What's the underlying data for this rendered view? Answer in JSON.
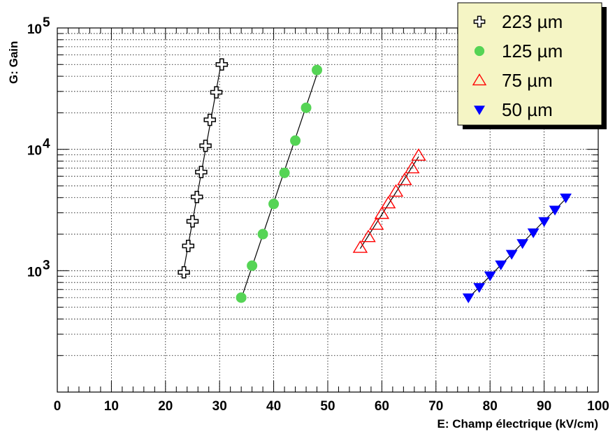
{
  "chart_data": {
    "type": "scatter",
    "xlabel": "E: Champ électrique (kV/cm)",
    "ylabel": "G: Gain",
    "xlim": [
      0,
      100
    ],
    "ylim": [
      100,
      100000
    ],
    "y_scale": "log",
    "grid": true,
    "legend_position": "top-right",
    "x_ticks": [
      "0",
      "10",
      "20",
      "30",
      "40",
      "50",
      "60",
      "70",
      "80",
      "90",
      "100"
    ],
    "y_ticks": [
      {
        "base": "10",
        "exp": "3",
        "value": 1000
      },
      {
        "base": "10",
        "exp": "4",
        "value": 10000
      },
      {
        "base": "10",
        "exp": "5",
        "value": 100000
      }
    ],
    "series": [
      {
        "name": "223 µm",
        "marker": "open-cross",
        "color": "#000000",
        "x": [
          23.4,
          24.2,
          25.0,
          25.8,
          26.6,
          27.4,
          28.2,
          29.4,
          30.4
        ],
        "y": [
          970,
          1600,
          2550,
          4050,
          6500,
          10700,
          17500,
          29500,
          50000
        ]
      },
      {
        "name": "125 µm",
        "marker": "filled-circle",
        "color": "#55d455",
        "x": [
          34,
          36,
          38,
          40,
          42,
          44,
          46,
          48
        ],
        "y": [
          600,
          1100,
          2000,
          3550,
          6400,
          11800,
          22000,
          45000
        ]
      },
      {
        "name": "75 µm",
        "marker": "open-triangle-up",
        "color": "#ff0000",
        "x": [
          56,
          57.5,
          59,
          60,
          61.2,
          62.6,
          64.2,
          65.6,
          66.8
        ],
        "y": [
          1550,
          1900,
          2400,
          2950,
          3600,
          4500,
          5600,
          7000,
          8900
        ]
      },
      {
        "name": "50 µm",
        "marker": "filled-triangle-down",
        "color": "#0000ff",
        "x": [
          76,
          78,
          80,
          82,
          84,
          86,
          88,
          90,
          92,
          94
        ],
        "y": [
          600,
          730,
          910,
          1120,
          1370,
          1680,
          2060,
          2550,
          3170,
          3990
        ]
      }
    ]
  }
}
